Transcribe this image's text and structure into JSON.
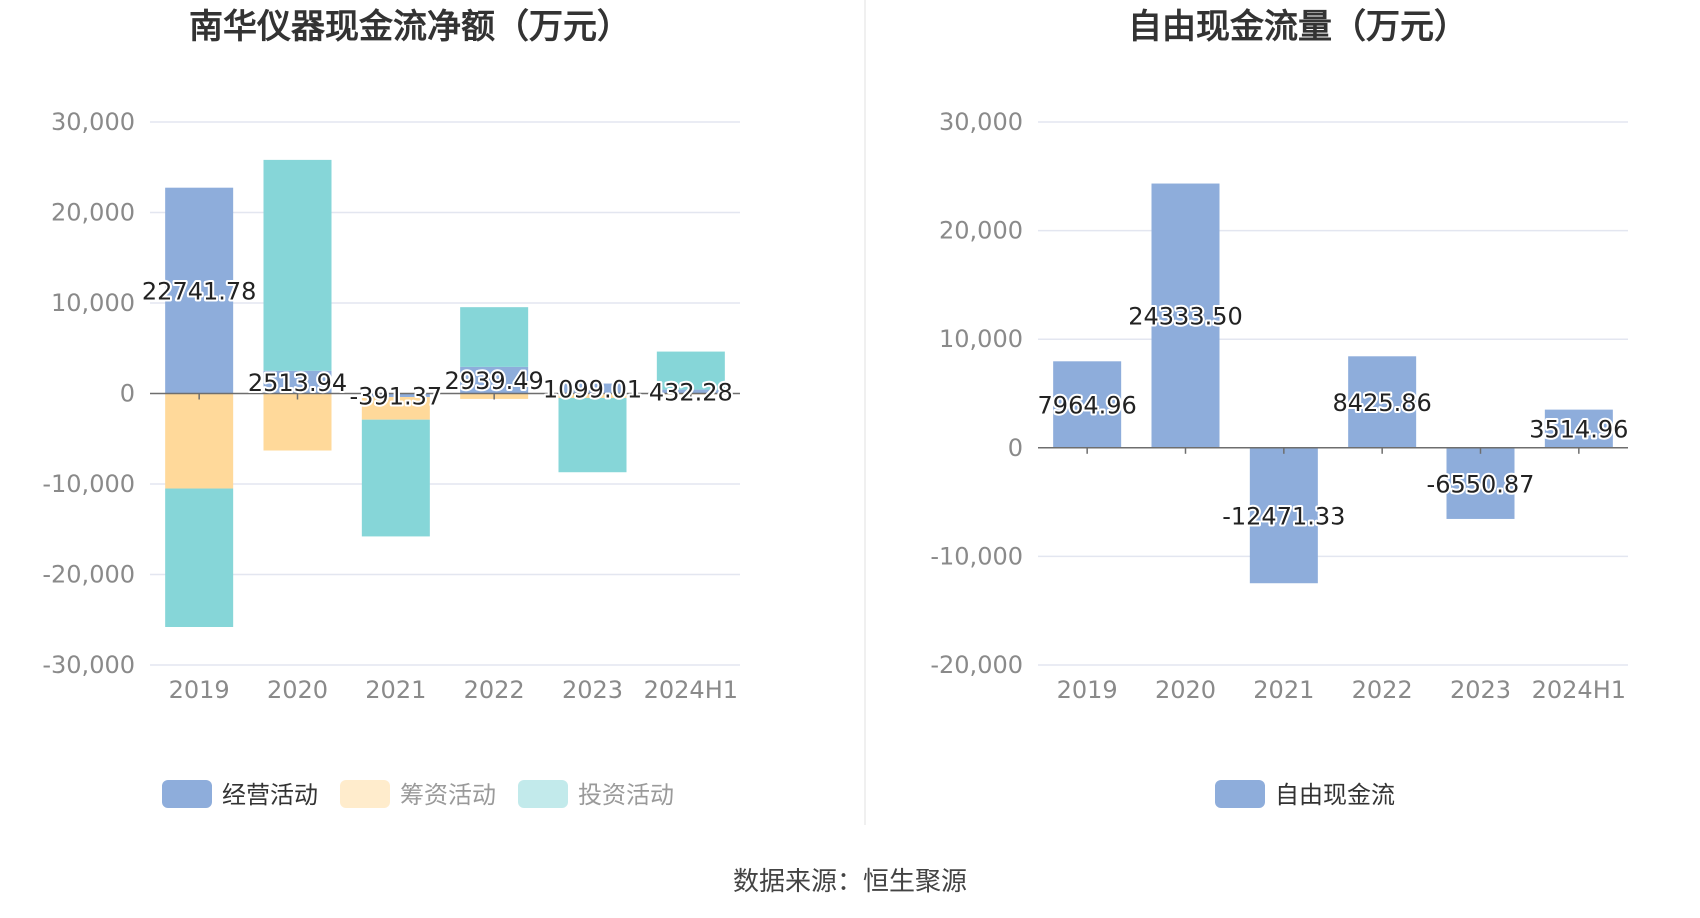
{
  "colors": {
    "operating": "#8eaddb",
    "financing": "#ffd99a",
    "investing": "#86d6d8",
    "free_cash_flow": "#8eaddb"
  },
  "source_text": "数据来源：恒生聚源",
  "chart_data": [
    {
      "type": "bar",
      "stacked": true,
      "title": "南华仪器现金流净额（万元）",
      "categories": [
        "2019",
        "2020",
        "2021",
        "2022",
        "2023",
        "2024H1"
      ],
      "ylim": [
        -30000,
        30000
      ],
      "yticks": [
        30000,
        20000,
        10000,
        0,
        -10000,
        -20000,
        -30000
      ],
      "ytick_labels": [
        "30,000",
        "20,000",
        "10,000",
        "0",
        "-10,000",
        "-20,000",
        "-30,000"
      ],
      "grid": true,
      "legend_position": "bottom",
      "series": [
        {
          "name": "经营活动",
          "color_key": "operating",
          "values": [
            22741.78,
            2513.94,
            -391.37,
            2939.49,
            1099.01,
            432.28
          ]
        },
        {
          "name": "筹资活动",
          "color_key": "financing",
          "values": [
            -10500,
            -6300,
            -2500,
            -600,
            -500,
            -100
          ]
        },
        {
          "name": "投资活动",
          "color_key": "investing",
          "values": [
            -15300,
            23300,
            -12900,
            6600,
            -8200,
            4200
          ]
        }
      ],
      "data_labels": [
        "22741.78",
        "2513.94",
        "-391.37",
        "2939.49",
        "1099.01",
        "432.28"
      ]
    },
    {
      "type": "bar",
      "title": "自由现金流量（万元）",
      "categories": [
        "2019",
        "2020",
        "2021",
        "2022",
        "2023",
        "2024H1"
      ],
      "ylim": [
        -20000,
        30000
      ],
      "yticks": [
        30000,
        20000,
        10000,
        0,
        -10000,
        -20000
      ],
      "ytick_labels": [
        "30,000",
        "20,000",
        "10,000",
        "0",
        "-10,000",
        "-20,000"
      ],
      "grid": true,
      "legend_position": "bottom",
      "series": [
        {
          "name": "自由现金流",
          "color_key": "free_cash_flow",
          "values": [
            7964.96,
            24333.5,
            -12471.33,
            8425.86,
            -6550.87,
            3514.96
          ]
        }
      ],
      "data_labels": [
        "7964.96",
        "24333.50",
        "-12471.33",
        "8425.86",
        "-6550.87",
        "3514.96"
      ]
    }
  ]
}
